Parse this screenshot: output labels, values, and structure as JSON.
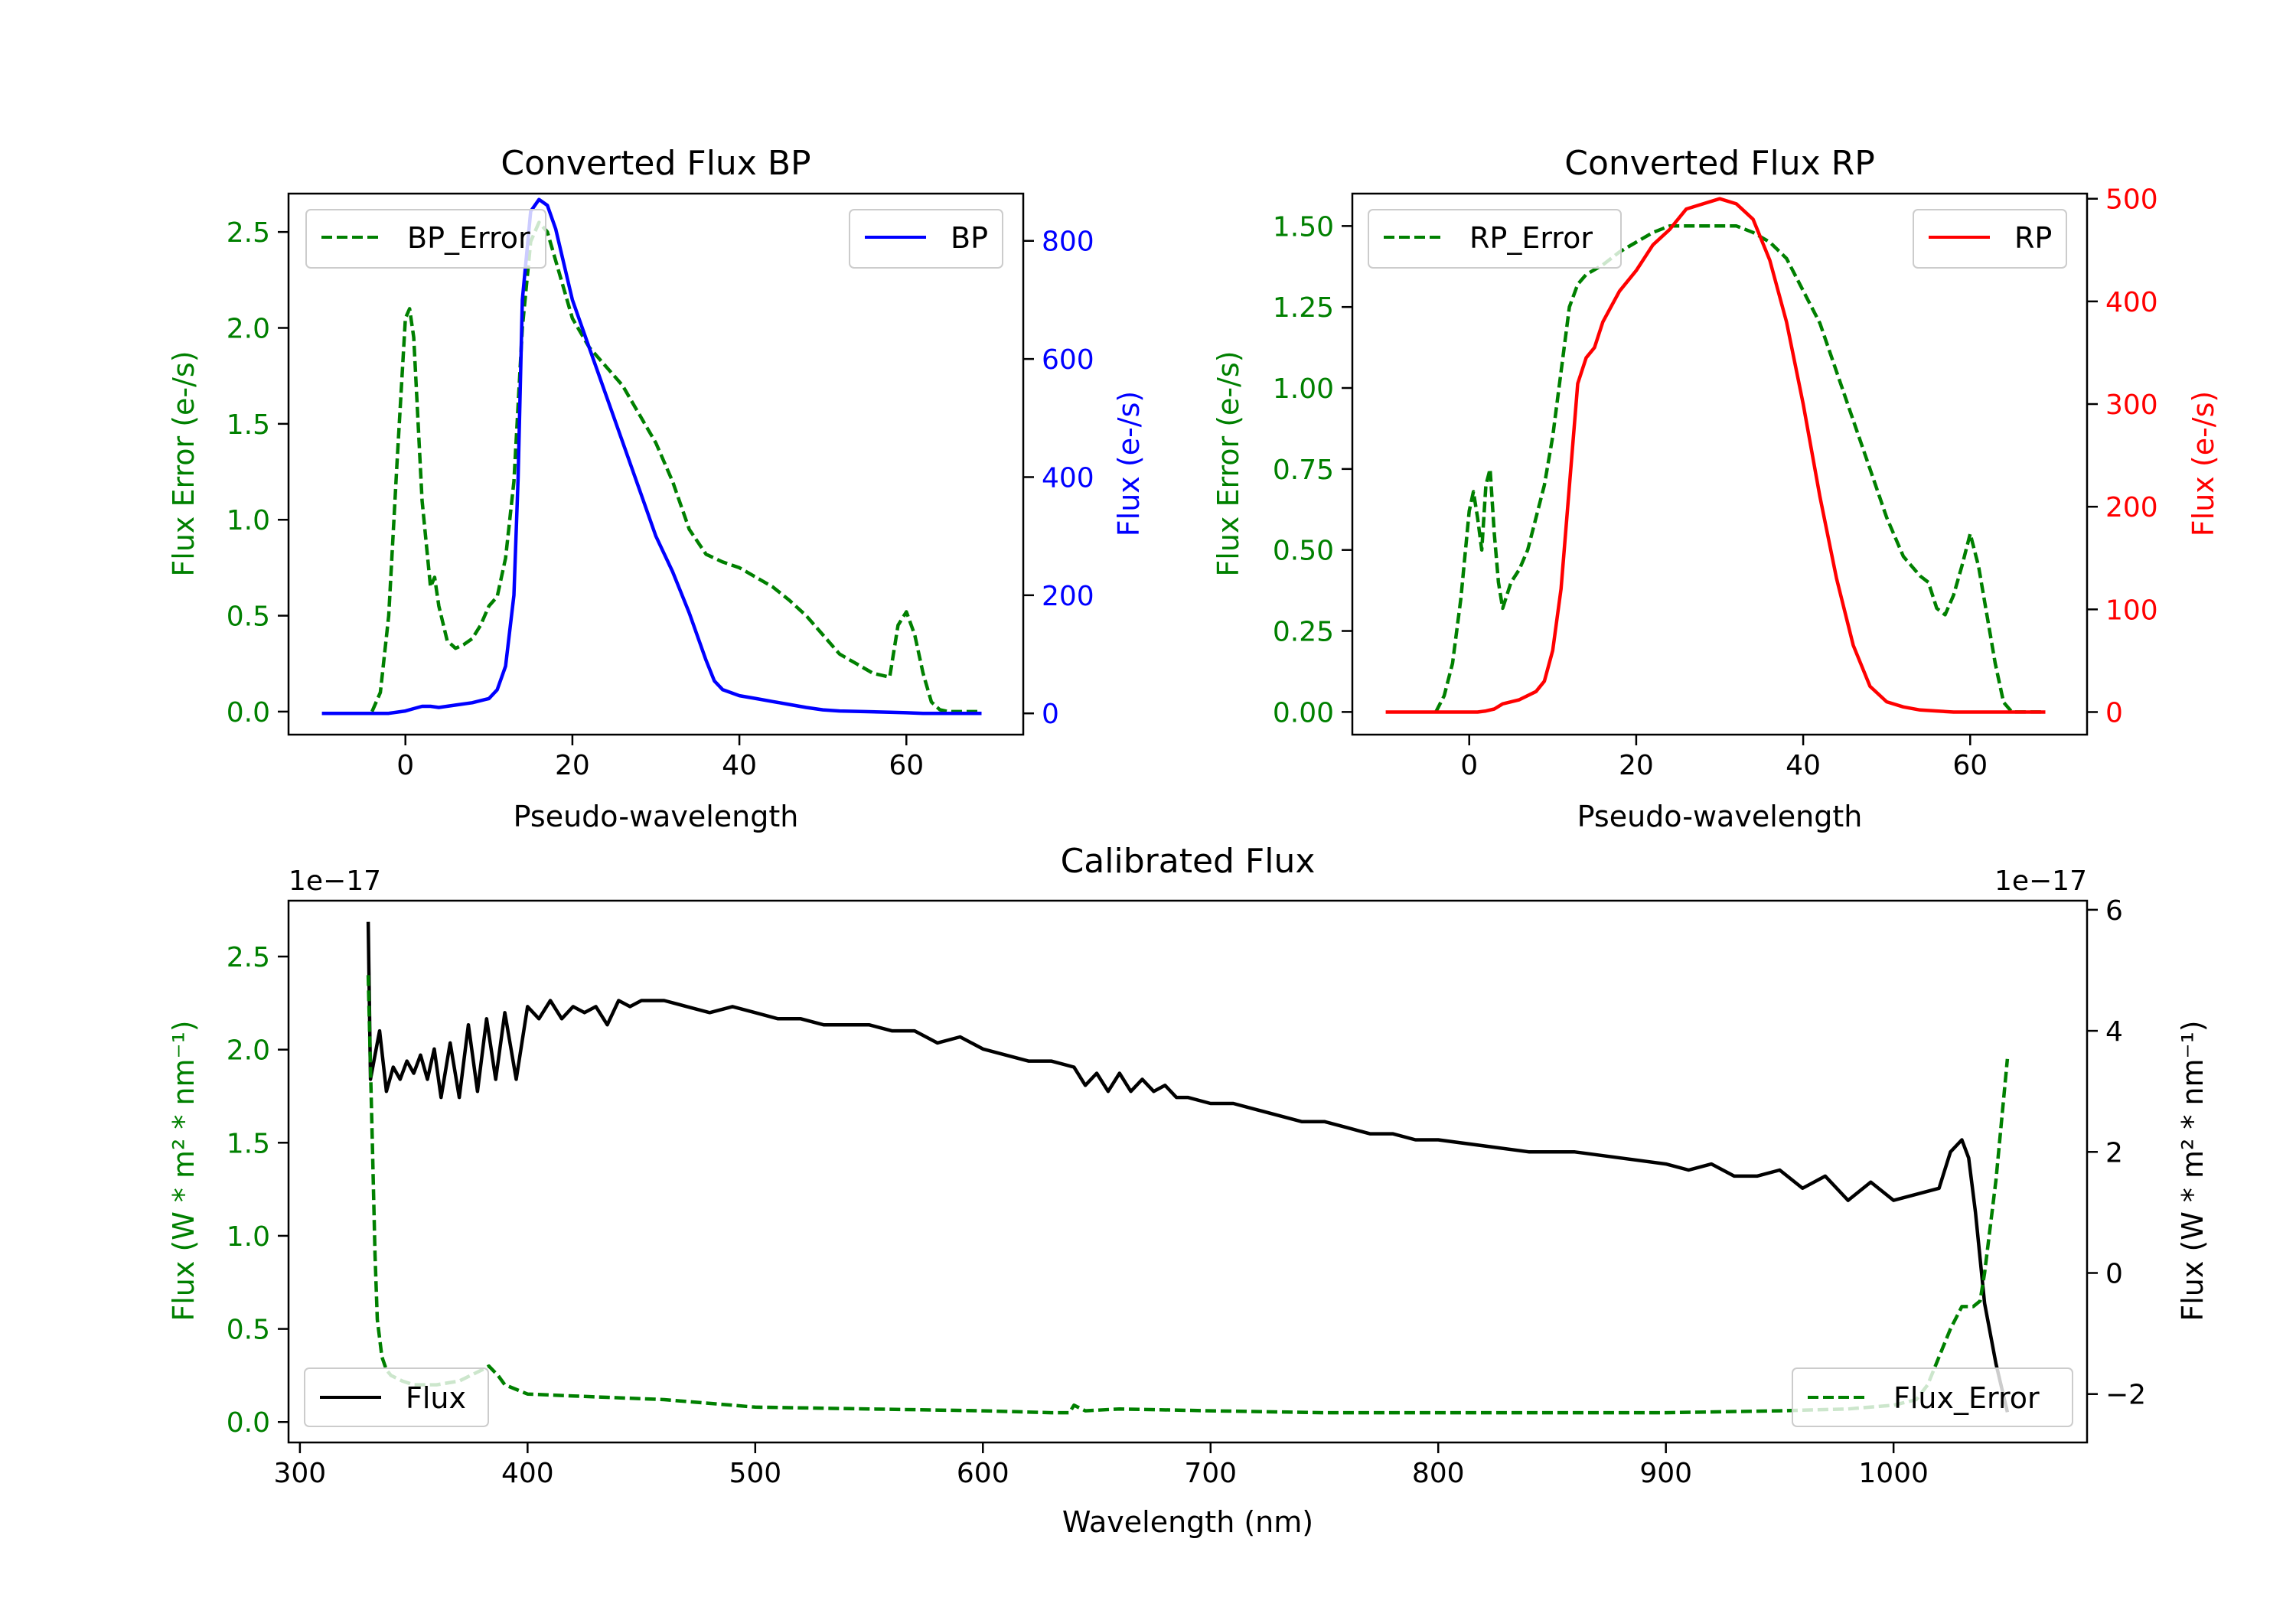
{
  "chart_data": [
    {
      "id": "bp",
      "type": "line",
      "title": "Converted Flux BP",
      "xlabel": "Pseudo-wavelength",
      "ylabel_left": "Flux Error (e-/s)",
      "ylabel_right": "Flux (e-/s)",
      "xlim": [
        -14,
        74
      ],
      "ylim_left": [
        -0.12,
        2.7
      ],
      "ylim_right": [
        -36,
        880
      ],
      "xticks": [
        "0",
        "20",
        "40",
        "60"
      ],
      "yticks_left": [
        "0.0",
        "0.5",
        "1.0",
        "1.5",
        "2.0",
        "2.5"
      ],
      "yticks_right": [
        "0",
        "200",
        "400",
        "600",
        "800"
      ],
      "left_color": "#008000",
      "right_color": "#0000ff",
      "legends": [
        {
          "label": "BP_Error",
          "color": "#008000",
          "style": "dashed",
          "position": "upper left"
        },
        {
          "label": "BP",
          "color": "#0000ff",
          "style": "solid",
          "position": "upper right"
        }
      ],
      "series": [
        {
          "name": "BP_Error",
          "axis": "left",
          "color": "#008000",
          "style": "dashed",
          "x": [
            -4,
            -3,
            -2,
            -1,
            0,
            0.5,
            1,
            2,
            3,
            3.5,
            4,
            5,
            6,
            7,
            8,
            9,
            10,
            11,
            12,
            13,
            14,
            15,
            16,
            17,
            18,
            19,
            20,
            22,
            24,
            26,
            28,
            30,
            32,
            34,
            36,
            38,
            40,
            42,
            44,
            46,
            48,
            50,
            52,
            54,
            56,
            58,
            59,
            60,
            61,
            62,
            63,
            64,
            65,
            69
          ],
          "values": [
            0.0,
            0.1,
            0.5,
            1.3,
            2.05,
            2.1,
            1.95,
            1.1,
            0.65,
            0.7,
            0.55,
            0.37,
            0.33,
            0.35,
            0.38,
            0.45,
            0.55,
            0.6,
            0.8,
            1.2,
            2.0,
            2.45,
            2.55,
            2.5,
            2.35,
            2.2,
            2.05,
            1.9,
            1.8,
            1.7,
            1.55,
            1.4,
            1.2,
            0.95,
            0.82,
            0.78,
            0.75,
            0.7,
            0.65,
            0.58,
            0.5,
            0.4,
            0.3,
            0.25,
            0.2,
            0.18,
            0.45,
            0.52,
            0.4,
            0.2,
            0.05,
            0.01,
            0.0,
            0.0
          ]
        },
        {
          "name": "BP",
          "axis": "right",
          "color": "#0000ff",
          "style": "solid",
          "x": [
            -10,
            -6,
            -4,
            -2,
            0,
            1,
            2,
            3,
            4,
            6,
            8,
            10,
            11,
            12,
            13,
            13.5,
            14,
            15,
            16,
            17,
            18,
            19,
            20,
            22,
            24,
            26,
            28,
            30,
            32,
            34,
            36,
            37,
            38,
            40,
            42,
            44,
            46,
            48,
            50,
            52,
            55,
            58,
            60,
            62,
            65,
            69
          ],
          "values": [
            0,
            0,
            0,
            0,
            4,
            8,
            12,
            12,
            10,
            14,
            18,
            25,
            40,
            80,
            200,
            400,
            700,
            850,
            870,
            860,
            820,
            760,
            700,
            620,
            540,
            460,
            380,
            300,
            240,
            170,
            90,
            55,
            40,
            30,
            25,
            20,
            15,
            10,
            6,
            4,
            3,
            2,
            1,
            0,
            0,
            0
          ]
        }
      ]
    },
    {
      "id": "rp",
      "type": "line",
      "title": "Converted Flux RP",
      "xlabel": "Pseudo-wavelength",
      "ylabel_left": "Flux Error (e-/s)",
      "ylabel_right": "Flux (e-/s)",
      "xlim": [
        -14,
        74
      ],
      "ylim_left": [
        -0.07,
        1.6
      ],
      "ylim_right": [
        -22,
        505
      ],
      "xticks": [
        "0",
        "20",
        "40",
        "60"
      ],
      "yticks_left": [
        "0.00",
        "0.25",
        "0.50",
        "0.75",
        "1.00",
        "1.25",
        "1.50"
      ],
      "yticks_right": [
        "0",
        "100",
        "200",
        "300",
        "400",
        "500"
      ],
      "left_color": "#008000",
      "right_color": "#ff0000",
      "legends": [
        {
          "label": "RP_Error",
          "color": "#008000",
          "style": "dashed",
          "position": "upper left"
        },
        {
          "label": "RP",
          "color": "#ff0000",
          "style": "solid",
          "position": "upper right"
        }
      ],
      "series": [
        {
          "name": "RP_Error",
          "axis": "left",
          "color": "#008000",
          "style": "dashed",
          "x": [
            -4,
            -3,
            -2,
            -1,
            0,
            0.5,
            1,
            1.5,
            2,
            2.5,
            3,
            3.5,
            4,
            5,
            6,
            7,
            8,
            9,
            10,
            11,
            12,
            13,
            14,
            16,
            18,
            20,
            22,
            24,
            26,
            28,
            30,
            32,
            34,
            36,
            38,
            40,
            42,
            44,
            46,
            48,
            50,
            52,
            54,
            55,
            56,
            57,
            58,
            59,
            60,
            61,
            62,
            63,
            64,
            65,
            69
          ],
          "values": [
            0.0,
            0.05,
            0.15,
            0.35,
            0.62,
            0.68,
            0.6,
            0.5,
            0.7,
            0.75,
            0.55,
            0.4,
            0.32,
            0.4,
            0.44,
            0.5,
            0.6,
            0.7,
            0.85,
            1.05,
            1.25,
            1.32,
            1.35,
            1.38,
            1.42,
            1.45,
            1.48,
            1.5,
            1.5,
            1.5,
            1.5,
            1.5,
            1.48,
            1.45,
            1.4,
            1.3,
            1.2,
            1.05,
            0.9,
            0.75,
            0.6,
            0.48,
            0.42,
            0.4,
            0.32,
            0.3,
            0.36,
            0.45,
            0.55,
            0.45,
            0.3,
            0.15,
            0.03,
            0.0,
            0.0
          ]
        },
        {
          "name": "RP",
          "axis": "right",
          "color": "#ff0000",
          "style": "solid",
          "x": [
            -10,
            -6,
            -4,
            -2,
            0,
            1,
            2,
            3,
            4,
            6,
            8,
            9,
            10,
            11,
            12,
            13,
            14,
            15,
            16,
            18,
            20,
            22,
            24,
            26,
            28,
            30,
            32,
            34,
            36,
            38,
            40,
            42,
            44,
            46,
            48,
            50,
            52,
            54,
            56,
            58,
            60,
            62,
            65,
            69
          ],
          "values": [
            0,
            0,
            0,
            0,
            0,
            0,
            1,
            3,
            8,
            12,
            20,
            30,
            60,
            120,
            220,
            320,
            345,
            355,
            380,
            410,
            430,
            455,
            470,
            490,
            495,
            500,
            495,
            480,
            440,
            380,
            300,
            210,
            130,
            65,
            25,
            10,
            5,
            2,
            1,
            0,
            0,
            0,
            0,
            0
          ]
        }
      ]
    },
    {
      "id": "cal",
      "type": "line",
      "title": "Calibrated Flux",
      "xlabel": "Wavelength (nm)",
      "ylabel_left": "Flux (W * m² * nm⁻¹)",
      "ylabel_right": "Flux (W * m² * nm⁻¹)",
      "offset_left": "1e−17",
      "offset_right": "1e−17",
      "xlim": [
        295,
        1085
      ],
      "ylim_left": [
        -0.11,
        2.8
      ],
      "ylim_right": [
        -2.8,
        6.15
      ],
      "xticks": [
        "300",
        "400",
        "500",
        "600",
        "700",
        "800",
        "900",
        "1000"
      ],
      "yticks_left": [
        "0.0",
        "0.5",
        "1.0",
        "1.5",
        "2.0",
        "2.5"
      ],
      "yticks_right": [
        "−2",
        "0",
        "2",
        "4",
        "6"
      ],
      "left_color": "#008000",
      "right_color": "#000000",
      "legends": [
        {
          "label": "Flux",
          "color": "#000000",
          "style": "solid",
          "position": "lower left"
        },
        {
          "label": "Flux_Error",
          "color": "#008000",
          "style": "dashed",
          "position": "lower right"
        }
      ],
      "series": [
        {
          "name": "Flux",
          "axis": "right",
          "color": "#000000",
          "style": "solid",
          "x": [
            330,
            331,
            333,
            335,
            338,
            341,
            344,
            347,
            350,
            353,
            356,
            359,
            362,
            366,
            370,
            374,
            378,
            382,
            386,
            390,
            395,
            400,
            405,
            410,
            415,
            420,
            425,
            430,
            435,
            440,
            445,
            450,
            460,
            470,
            480,
            490,
            500,
            510,
            520,
            530,
            540,
            550,
            560,
            570,
            580,
            590,
            600,
            610,
            620,
            630,
            640,
            645,
            650,
            655,
            660,
            665,
            670,
            675,
            680,
            685,
            690,
            700,
            710,
            720,
            730,
            740,
            750,
            760,
            770,
            780,
            790,
            800,
            820,
            840,
            860,
            880,
            900,
            910,
            920,
            930,
            940,
            950,
            960,
            970,
            980,
            990,
            1000,
            1010,
            1020,
            1025,
            1030,
            1033,
            1036,
            1040,
            1045,
            1050
          ],
          "values": [
            5.8,
            3.2,
            3.6,
            4.0,
            3.0,
            3.4,
            3.2,
            3.5,
            3.3,
            3.6,
            3.2,
            3.7,
            2.9,
            3.8,
            2.9,
            4.1,
            3.0,
            4.2,
            3.2,
            4.3,
            3.2,
            4.4,
            4.2,
            4.5,
            4.2,
            4.4,
            4.3,
            4.4,
            4.1,
            4.5,
            4.4,
            4.5,
            4.5,
            4.4,
            4.3,
            4.4,
            4.3,
            4.2,
            4.2,
            4.1,
            4.1,
            4.1,
            4.0,
            4.0,
            3.8,
            3.9,
            3.7,
            3.6,
            3.5,
            3.5,
            3.4,
            3.1,
            3.3,
            3.0,
            3.3,
            3.0,
            3.2,
            3.0,
            3.1,
            2.9,
            2.9,
            2.8,
            2.8,
            2.7,
            2.6,
            2.5,
            2.5,
            2.4,
            2.3,
            2.3,
            2.2,
            2.2,
            2.1,
            2.0,
            2.0,
            1.9,
            1.8,
            1.7,
            1.8,
            1.6,
            1.6,
            1.7,
            1.4,
            1.6,
            1.2,
            1.5,
            1.2,
            1.3,
            1.4,
            2.0,
            2.2,
            1.9,
            1.0,
            -0.5,
            -1.5,
            -2.3
          ]
        },
        {
          "name": "Flux_Error",
          "axis": "left",
          "color": "#008000",
          "style": "dashed",
          "x": [
            330,
            331,
            332,
            333,
            334,
            336,
            338,
            340,
            345,
            350,
            360,
            370,
            375,
            380,
            383,
            387,
            390,
            400,
            420,
            440,
            460,
            480,
            500,
            550,
            600,
            630,
            638,
            640,
            645,
            660,
            700,
            750,
            800,
            850,
            900,
            950,
            980,
            1000,
            1010,
            1015,
            1020,
            1025,
            1030,
            1035,
            1038,
            1040,
            1045,
            1050
          ],
          "values": [
            2.4,
            1.9,
            1.4,
            0.9,
            0.55,
            0.35,
            0.28,
            0.25,
            0.22,
            0.2,
            0.2,
            0.22,
            0.25,
            0.28,
            0.3,
            0.25,
            0.2,
            0.15,
            0.14,
            0.13,
            0.12,
            0.1,
            0.08,
            0.07,
            0.06,
            0.05,
            0.05,
            0.09,
            0.06,
            0.07,
            0.06,
            0.05,
            0.05,
            0.05,
            0.05,
            0.06,
            0.07,
            0.09,
            0.12,
            0.2,
            0.35,
            0.5,
            0.62,
            0.62,
            0.65,
            0.8,
            1.3,
            1.95
          ]
        }
      ]
    }
  ]
}
